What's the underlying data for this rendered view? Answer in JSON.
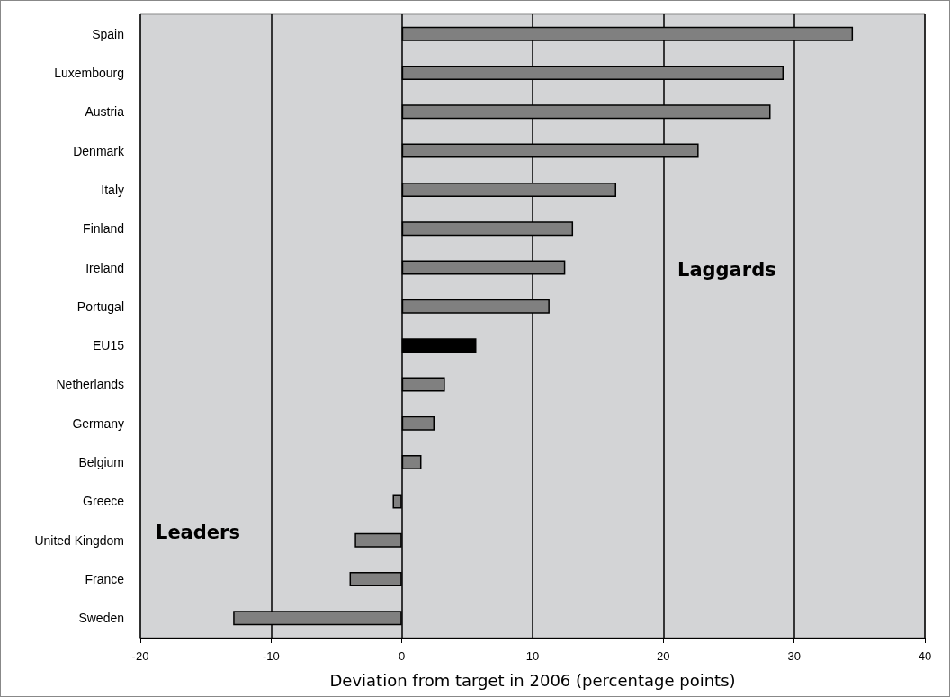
{
  "chart_data": {
    "type": "bar",
    "orientation": "horizontal",
    "xlabel": "Deviation from target in 2006 (percentage points)",
    "categories": [
      "Spain",
      "Luxembourg",
      "Austria",
      "Denmark",
      "Italy",
      "Finland",
      "Ireland",
      "Portugal",
      "EU15",
      "Netherlands",
      "Germany",
      "Belgium",
      "Greece",
      "United Kingdom",
      "France",
      "Sweden"
    ],
    "values": [
      34.5,
      29.2,
      28.2,
      22.7,
      16.4,
      13.1,
      12.5,
      11.3,
      5.7,
      3.3,
      2.5,
      1.5,
      -0.7,
      -3.6,
      -4.0,
      -12.9
    ],
    "colors": [
      "#808080",
      "#808080",
      "#808080",
      "#808080",
      "#808080",
      "#808080",
      "#808080",
      "#808080",
      "#000000",
      "#808080",
      "#808080",
      "#808080",
      "#808080",
      "#808080",
      "#808080",
      "#808080"
    ],
    "xlim": [
      -20,
      40
    ],
    "xticks": [
      -20,
      -10,
      0,
      10,
      20,
      30,
      40
    ],
    "grid": "x",
    "annotations": [
      "Laggards",
      "Leaders"
    ]
  }
}
